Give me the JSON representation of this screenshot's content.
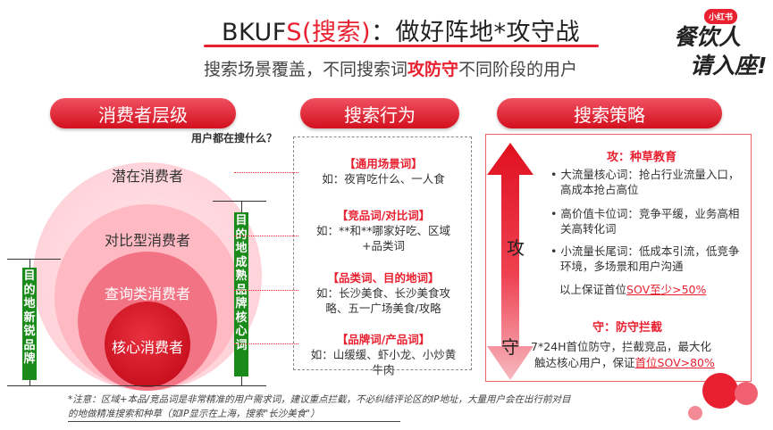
{
  "header": {
    "title_prefix": "BKUF",
    "title_highlight": "S(搜索)",
    "title_suffix": "：做好阵地*攻守战",
    "subtitle_pre": "搜索场景覆盖，不同搜索词",
    "subtitle_highlight": "攻防守",
    "subtitle_post": "不同阶段的用户"
  },
  "logo": {
    "badge": "小红书",
    "line1": "餐饮人",
    "line2": "请入座!"
  },
  "columns": {
    "levels": "消费者层级",
    "behavior": "搜索行为",
    "strategy": "搜索策略"
  },
  "question": "用户都在搜什么？",
  "circles": {
    "latent": "潜在消费者",
    "compare": "对比型消费者",
    "query": "查询类消费者",
    "core": "核心消费者"
  },
  "side_labels": {
    "left": [
      "目",
      "的",
      "地",
      "新",
      "锐",
      "品",
      "牌"
    ],
    "right": [
      "目",
      "的",
      "地",
      "成",
      "熟",
      "品",
      "牌",
      "核",
      "心",
      "词"
    ]
  },
  "behaviors": [
    {
      "heading": "【通用场景词】",
      "line1": "如：夜宵吃什么、一人食",
      "line2": ""
    },
    {
      "heading": "【竞品词/对比词】",
      "line1": "如：**和**哪家好吃、区域",
      "line2": "+品类词"
    },
    {
      "heading": "【品类词、目的地词】",
      "line1": "如：长沙美食、长沙美食攻",
      "line2": "略、五一广场美食/攻略"
    },
    {
      "heading": "【品牌词/产品词】",
      "line1": "如：山缓缓、虾小龙、小炒黄",
      "line2": "牛肉"
    }
  ],
  "strategy": {
    "attack_label": "攻",
    "defend_label": "守",
    "attack_heading": "攻：种草教育",
    "attack_items": [
      "• 大流量核心词：抢占行业流量入口，高成本抢占高位",
      "• 高价值卡位词：竞争平缓，业务高相关高转化词",
      "• 小流量长尾词：低成本引流，低竞争环境，多场景和用户沟通"
    ],
    "attack_note_pre": "以上保证首位",
    "attack_note_hl": "SOV至少>50%",
    "defend_heading_red": "守：",
    "defend_heading_rest": "防守拦截",
    "defend_line1": "7*24H首位防守，拦截竞品，最大化",
    "defend_line2_pre": "触达核心用户，保证",
    "defend_line2_hl": "首位SOV>80%"
  },
  "footnote": {
    "line1": "*注意：区域+本品/竞品词是非常精准的用户需求词，建议重点拦截，不必纠结评论区的IP地址，大量用户会在出行前对目",
    "line2": "的地做精准搜索和种草（如IP显示在上海，搜索\"长沙美食\"）"
  },
  "colors": {
    "accent": "#e8202f",
    "green": "#1a8a1a"
  }
}
